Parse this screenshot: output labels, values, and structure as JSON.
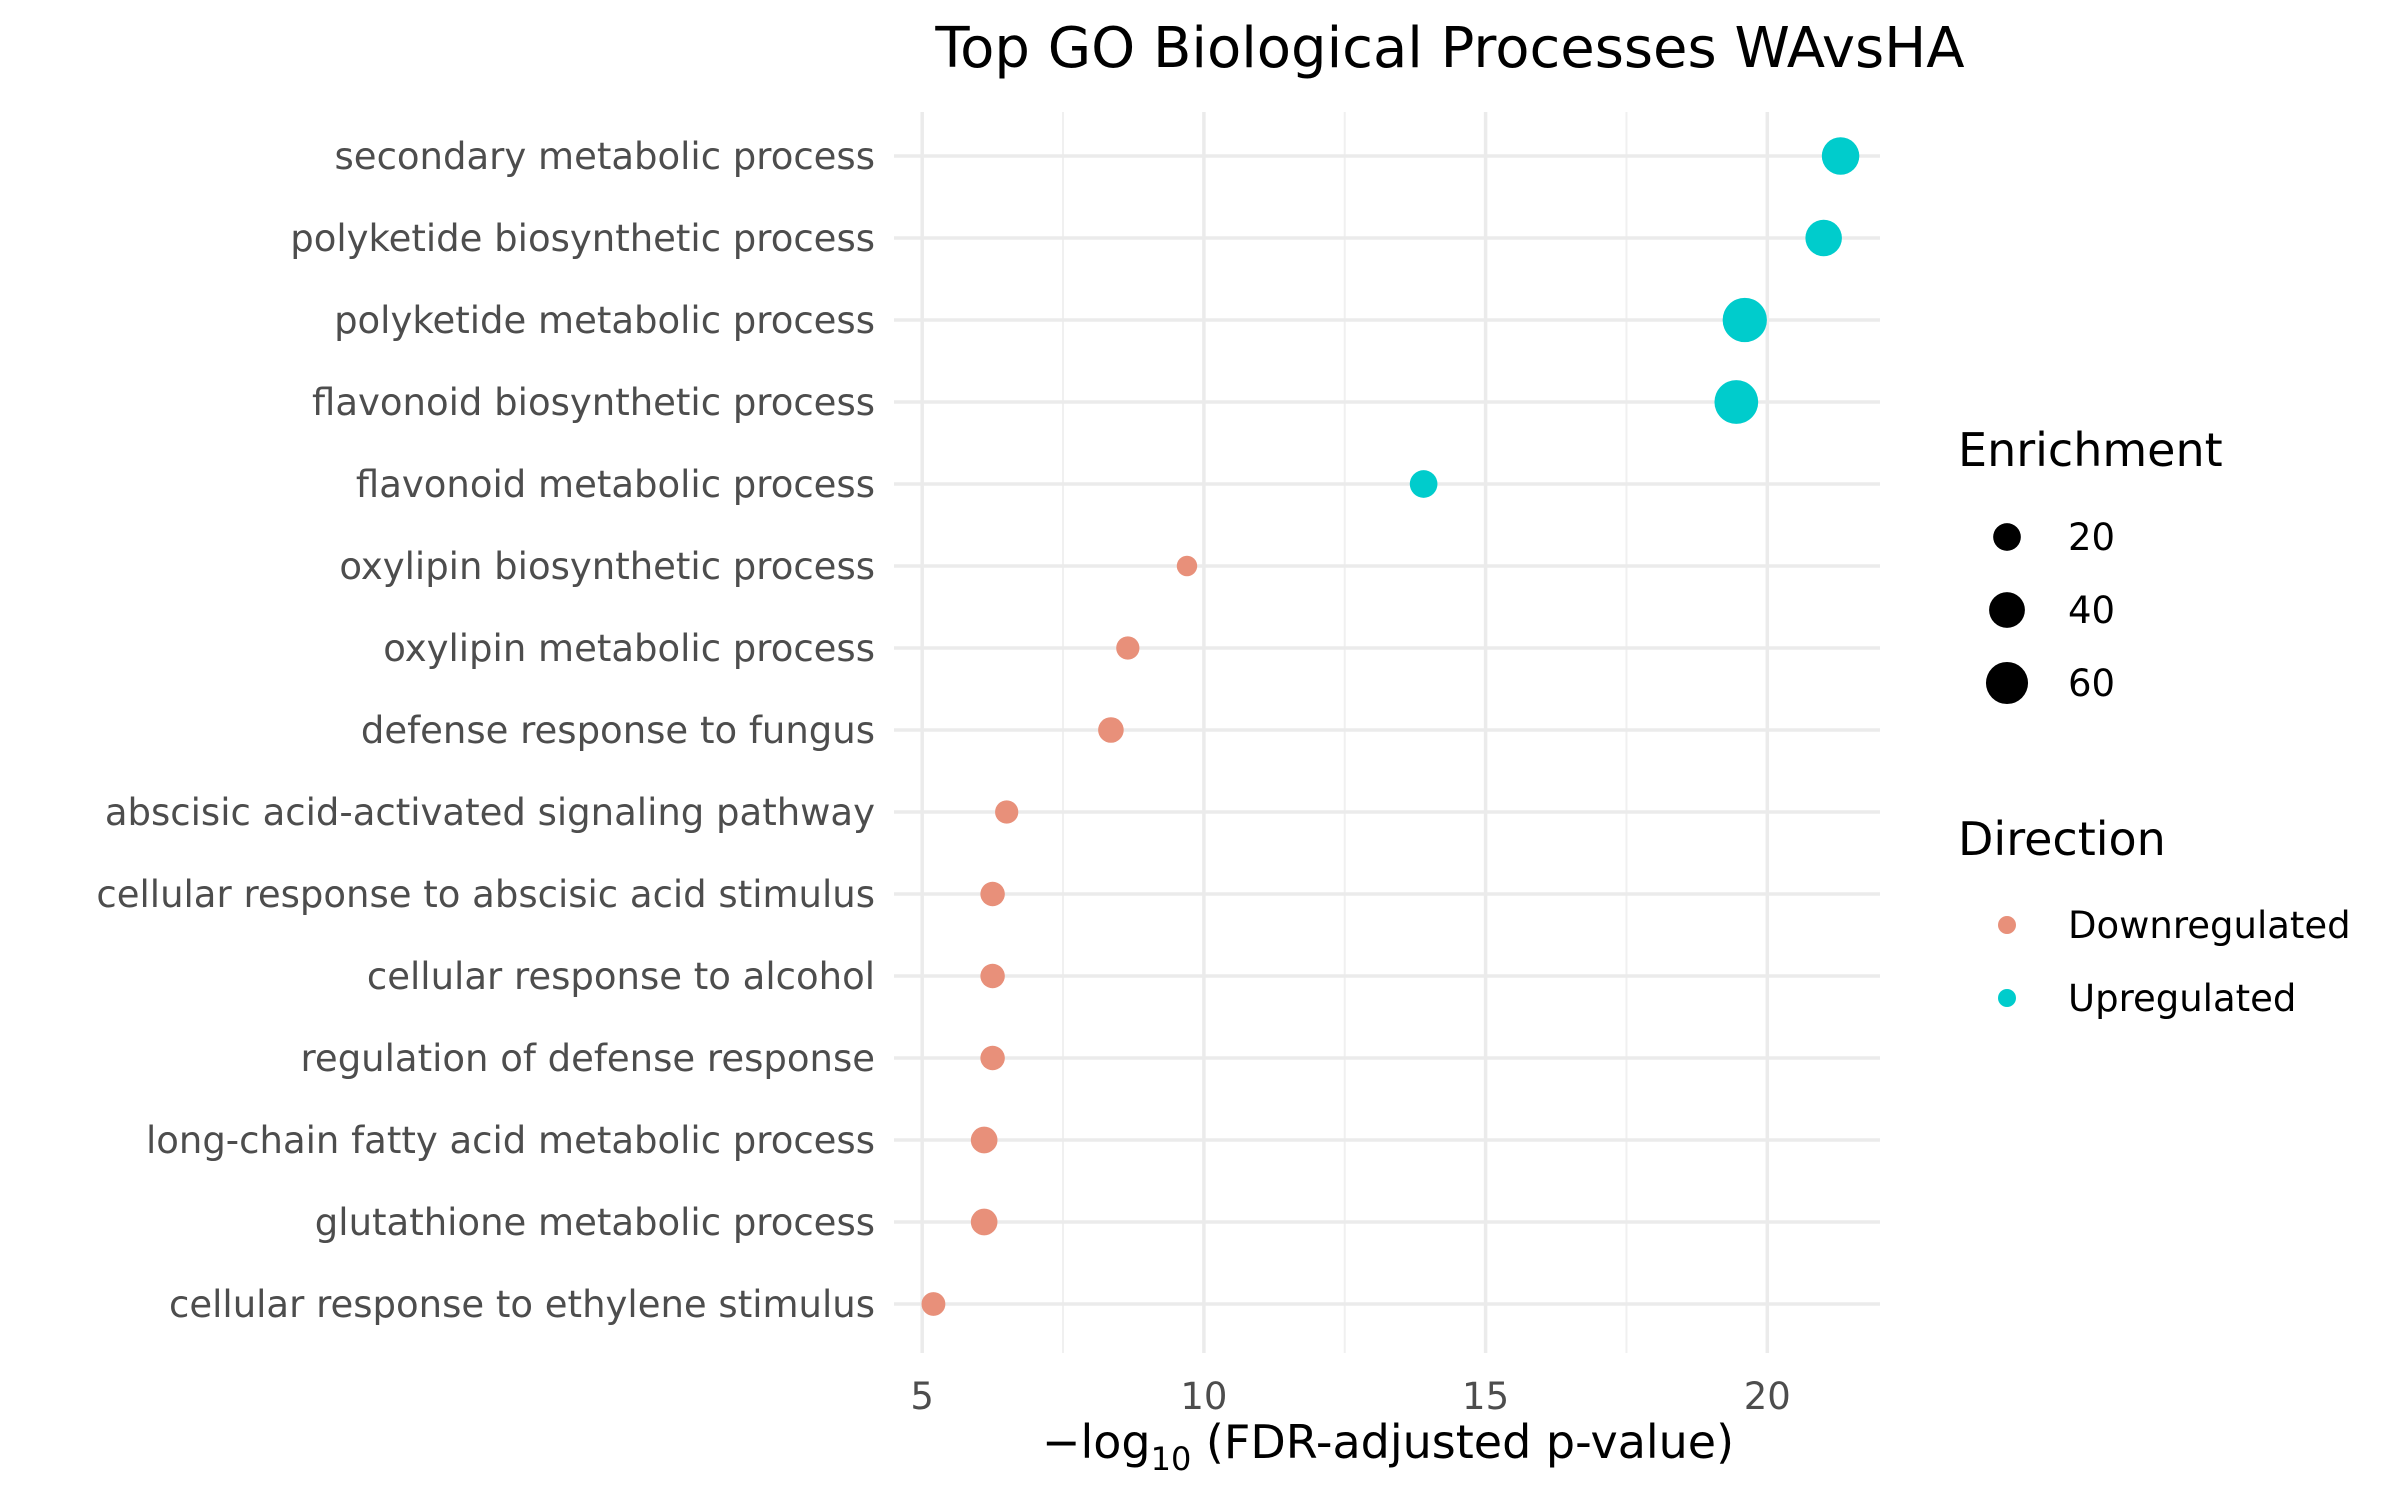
{
  "chart_data": {
    "type": "scatter",
    "title": "Top GO Biological Processes WAvsHA",
    "xlabel_prefix": "−log",
    "xlabel_sub": "10",
    "xlabel_suffix": " (FDR-adjusted p-value)",
    "xlim": [
      4.5,
      22.0
    ],
    "xticks": [
      5,
      10,
      15,
      20
    ],
    "grid": true,
    "categories": [
      "secondary metabolic process",
      "polyketide biosynthetic process",
      "polyketide metabolic process",
      "flavonoid biosynthetic process",
      "flavonoid metabolic process",
      "oxylipin biosynthetic process",
      "oxylipin metabolic process",
      "defense response to fungus",
      "abscisic acid-activated signaling pathway",
      "cellular response to abscisic acid stimulus",
      "cellular response to alcohol",
      "regulation of defense response",
      "long-chain fatty acid metabolic process",
      "glutathione metabolic process",
      "cellular response to ethylene stimulus"
    ],
    "points": [
      {
        "term": "secondary metabolic process",
        "x": 21.3,
        "enrichment": 45,
        "direction": "Upregulated"
      },
      {
        "term": "polyketide biosynthetic process",
        "x": 21.0,
        "enrichment": 42,
        "direction": "Upregulated"
      },
      {
        "term": "polyketide metabolic process",
        "x": 19.6,
        "enrichment": 68,
        "direction": "Upregulated"
      },
      {
        "term": "flavonoid biosynthetic process",
        "x": 19.45,
        "enrichment": 66,
        "direction": "Upregulated"
      },
      {
        "term": "flavonoid metabolic process",
        "x": 13.9,
        "enrichment": 20,
        "direction": "Upregulated"
      },
      {
        "term": "oxylipin biosynthetic process",
        "x": 9.7,
        "enrichment": 8,
        "direction": "Downregulated"
      },
      {
        "term": "oxylipin metabolic process",
        "x": 8.65,
        "enrichment": 12,
        "direction": "Downregulated"
      },
      {
        "term": "defense response to fungus",
        "x": 8.35,
        "enrichment": 16,
        "direction": "Downregulated"
      },
      {
        "term": "abscisic acid-activated signaling pathway",
        "x": 6.5,
        "enrichment": 12,
        "direction": "Downregulated"
      },
      {
        "term": "cellular response to abscisic acid stimulus",
        "x": 6.25,
        "enrichment": 14,
        "direction": "Downregulated"
      },
      {
        "term": "cellular response to alcohol",
        "x": 6.25,
        "enrichment": 14,
        "direction": "Downregulated"
      },
      {
        "term": "regulation of defense response",
        "x": 6.25,
        "enrichment": 14,
        "direction": "Downregulated"
      },
      {
        "term": "long-chain fatty acid metabolic process",
        "x": 6.1,
        "enrichment": 18,
        "direction": "Downregulated"
      },
      {
        "term": "glutathione metabolic process",
        "x": 6.1,
        "enrichment": 18,
        "direction": "Downregulated"
      },
      {
        "term": "cellular response to ethylene stimulus",
        "x": 5.2,
        "enrichment": 13,
        "direction": "Downregulated"
      }
    ],
    "legend": {
      "placement": "right",
      "size_title": "Enrichment",
      "size_entries": [
        {
          "label": "20",
          "value": 20
        },
        {
          "label": "40",
          "value": 40
        },
        {
          "label": "60",
          "value": 60
        }
      ],
      "color_title": "Direction",
      "color_entries": [
        {
          "label": "Downregulated",
          "color": "#e8907a"
        },
        {
          "label": "Upregulated",
          "color": "#00cccc"
        }
      ]
    }
  }
}
